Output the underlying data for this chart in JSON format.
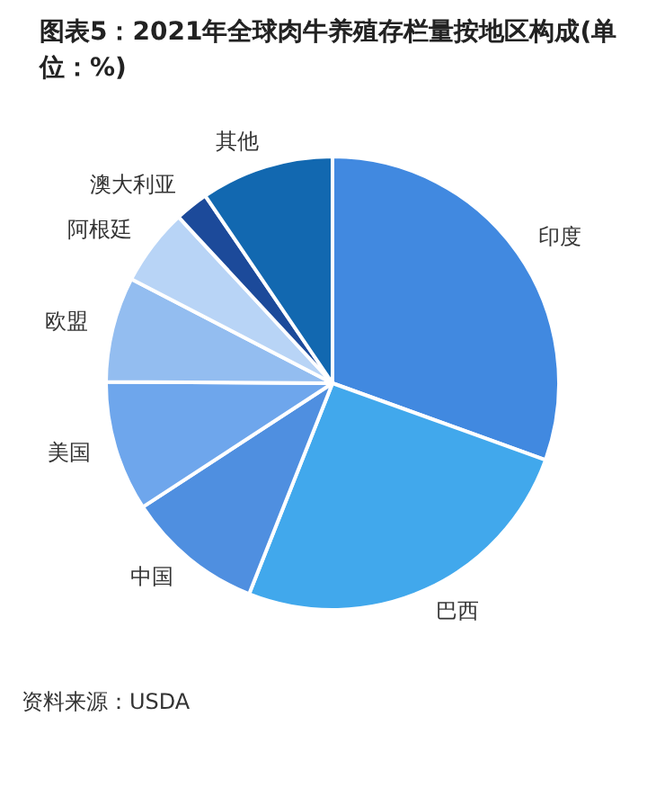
{
  "chart_data": {
    "type": "pie",
    "title": "图表5：2021年全球肉牛养殖存栏量按地区构成(单位：%)",
    "categories": [
      "印度",
      "巴西",
      "中国",
      "美国",
      "欧盟",
      "阿根廷",
      "澳大利亚",
      "其他"
    ],
    "values": [
      30.5,
      25.5,
      9.8,
      9.3,
      7.5,
      5.5,
      2.4,
      9.5
    ],
    "colors": [
      "#4189e0",
      "#41a8ec",
      "#4f8fe0",
      "#6ea6ec",
      "#93bdf0",
      "#b8d4f6",
      "#1c4a9a",
      "#1268b0"
    ],
    "legend": false,
    "annotations": [
      "资料来源：USDA"
    ]
  }
}
